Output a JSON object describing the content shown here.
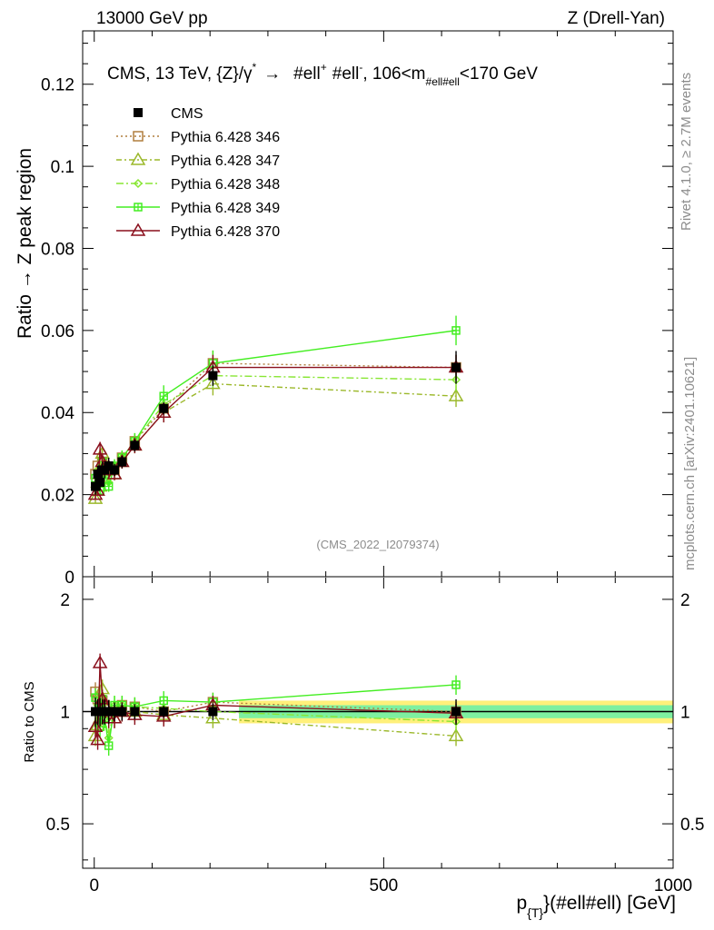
{
  "header": {
    "left": "13000 GeV pp",
    "right": "Z (Drell-Yan)",
    "plot_title": "CMS, 13 TeV, {Z}/γ* → #ell+ #ell-, 106<m_#ell#ell<170 GeV",
    "title_parts": {
      "a": "CMS, 13 TeV, {Z}/",
      "gamma": "γ",
      "star": "*",
      "arrow": "→",
      "l1": "#ell",
      "plus": "+",
      "l2": "#ell",
      "minus": "-",
      "cut1": ", 106<m",
      "sub": "#ell#ell",
      "cut2": "<170 GeV"
    }
  },
  "side": {
    "rivet": "Rivet 4.1.0, ≥ 2.7M events",
    "mcplots": "mcplots.cern.ch [arXiv:2401.10621]"
  },
  "watermark": "(CMS_2022_I2079374)",
  "colors": {
    "cms": "#000000",
    "p346": "#b07e3e",
    "p347": "#9bb82a",
    "p348": "#88e633",
    "p349": "#44ee22",
    "p370": "#8a0f1c",
    "band_inner": "#7ef0a0",
    "band_outer": "#fff07a"
  },
  "chart_data": {
    "type": "line",
    "x_label": "p_{T}(#ell#ell) [GeV]",
    "x_label_parts": {
      "p": "p",
      "sub": "{T}",
      "rest": "}(#ell#ell) [GeV]"
    },
    "xlim": [
      -20,
      1000
    ],
    "x_ticks": [
      0,
      500,
      1000
    ],
    "main": {
      "ylabel": "Ratio → Z peak region",
      "ylim": [
        0,
        0.133
      ],
      "y_ticks": [
        0,
        0.02,
        0.04,
        0.06,
        0.08,
        0.1,
        0.12
      ],
      "y_tick_labels": [
        "0",
        "0.02",
        "0.04",
        "0.06",
        "0.08",
        "0.1",
        "0.12"
      ]
    },
    "ratio": {
      "ylabel": "Ratio to CMS",
      "ylim": [
        0.38,
        2.3
      ],
      "y_ticks": [
        0.5,
        1,
        2
      ],
      "y_tick_labels": [
        "0.5",
        "1",
        "2"
      ],
      "band_inner": [
        0.96,
        1.04
      ],
      "band_outer": [
        0.93,
        1.07
      ]
    },
    "x": [
      2,
      6,
      10,
      14,
      18,
      25,
      35,
      48,
      70,
      120,
      205,
      625
    ],
    "series": [
      {
        "name": "CMS",
        "key": "cms",
        "legend": "CMS",
        "values": [
          0.022,
          0.025,
          0.023,
          0.026,
          0.026,
          0.027,
          0.026,
          0.028,
          0.032,
          0.041,
          0.049,
          0.051
        ],
        "errors": [
          0.002,
          0.002,
          0.002,
          0.002,
          0.002,
          0.002,
          0.0015,
          0.0015,
          0.0015,
          0.0015,
          0.0025,
          0.004
        ],
        "ratio": [
          1,
          1,
          1,
          1,
          1,
          1,
          1,
          1,
          1,
          1,
          1,
          1
        ]
      },
      {
        "name": "Pythia 6.428 346",
        "key": "p346",
        "legend": "Pythia 6.428 346",
        "values": [
          0.025,
          0.027,
          0.024,
          0.028,
          0.027,
          0.026,
          0.026,
          0.029,
          0.033,
          0.041,
          0.052,
          0.051
        ],
        "ratio": [
          1.13,
          1.08,
          1.04,
          1.07,
          1.04,
          0.96,
          1.0,
          1.04,
          1.03,
          1.0,
          1.06,
          1.0
        ]
      },
      {
        "name": "Pythia 6.428 347",
        "key": "p347",
        "legend": "Pythia 6.428 347",
        "values": [
          0.019,
          0.023,
          0.022,
          0.03,
          0.027,
          0.026,
          0.025,
          0.028,
          0.032,
          0.04,
          0.047,
          0.044
        ],
        "ratio": [
          0.86,
          0.92,
          0.96,
          1.15,
          1.04,
          0.96,
          0.96,
          1.0,
          1.0,
          0.98,
          0.96,
          0.86
        ]
      },
      {
        "name": "Pythia 6.428 348",
        "key": "p348",
        "legend": "Pythia 6.428 348",
        "values": [
          0.022,
          0.026,
          0.025,
          0.027,
          0.025,
          0.023,
          0.027,
          0.029,
          0.033,
          0.042,
          0.049,
          0.048
        ],
        "ratio": [
          1.0,
          1.04,
          1.09,
          1.04,
          0.96,
          0.85,
          1.04,
          1.04,
          1.03,
          1.02,
          1.0,
          0.94
        ]
      },
      {
        "name": "Pythia 6.428 349",
        "key": "p349",
        "legend": "Pythia 6.428 349",
        "values": [
          0.024,
          0.025,
          0.021,
          0.028,
          0.025,
          0.022,
          0.027,
          0.029,
          0.033,
          0.044,
          0.052,
          0.06
        ],
        "ratio": [
          1.09,
          1.0,
          0.91,
          1.08,
          0.96,
          0.81,
          1.04,
          1.04,
          1.03,
          1.07,
          1.06,
          1.18
        ]
      },
      {
        "name": "Pythia 6.428 370",
        "key": "p370",
        "legend": "Pythia 6.428 370",
        "values": [
          0.02,
          0.021,
          0.031,
          0.028,
          0.027,
          0.026,
          0.025,
          0.028,
          0.032,
          0.04,
          0.051,
          0.051
        ],
        "ratio": [
          0.91,
          0.84,
          1.35,
          1.08,
          1.04,
          0.96,
          0.96,
          1.0,
          0.98,
          0.97,
          1.04,
          0.99
        ]
      }
    ]
  }
}
